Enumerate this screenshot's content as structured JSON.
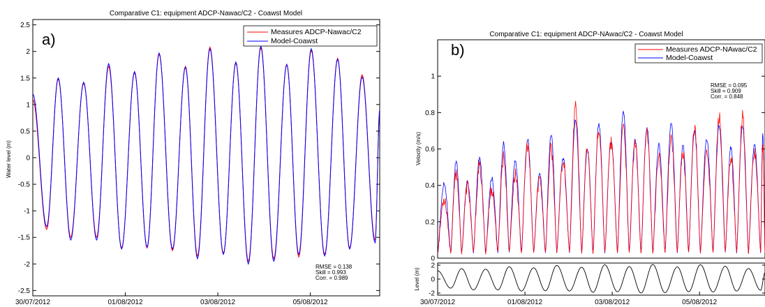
{
  "chart_data": [
    {
      "type": "line",
      "panel_label": "a)",
      "title": "Comparative C1: equipment ADCP-Nawac/C2 - Coawst Model",
      "xlabel": "",
      "ylabel": "Water level (m)",
      "ylim": [
        -2.6,
        2.6
      ],
      "yticks": [
        "2.5",
        "2",
        "1.5",
        "1",
        "0.5",
        "0",
        "-0.5",
        "-1",
        "-1.5",
        "-2",
        "-2.5"
      ],
      "yticks_values": [
        2.5,
        2,
        1.5,
        1,
        0.5,
        0,
        -0.5,
        -1,
        -1.5,
        -2,
        -2.5
      ],
      "xticks": [
        "30/07/2012",
        "01/08/2012",
        "03/08/2012",
        "05/08/2012"
      ],
      "xticks_values": [
        0,
        2,
        4,
        6
      ],
      "xlim": [
        0,
        7.5
      ],
      "grid": false,
      "legend_position": "top-right",
      "series": [
        {
          "name": "Measures ADCP-Nawac/C2",
          "color": "#ff0000"
        },
        {
          "name": "Model-Coawst",
          "color": "#0000ff"
        }
      ],
      "tide_extrema_model": {
        "x": [
          0.0,
          0.3,
          0.55,
          0.82,
          1.1,
          1.38,
          1.64,
          1.92,
          2.2,
          2.47,
          2.73,
          3.02,
          3.3,
          3.56,
          3.83,
          4.12,
          4.39,
          4.66,
          4.93,
          5.21,
          5.49,
          5.75,
          6.02,
          6.31,
          6.59,
          6.85,
          7.12,
          7.4,
          7.5
        ],
        "y": [
          1.2,
          -1.3,
          1.5,
          -1.55,
          1.42,
          -1.55,
          1.77,
          -1.72,
          1.62,
          -1.68,
          1.97,
          -1.72,
          1.7,
          -1.9,
          2.05,
          -1.82,
          1.8,
          -2.0,
          2.1,
          -1.95,
          1.75,
          -1.82,
          2.05,
          -1.85,
          1.85,
          -1.72,
          1.52,
          -1.6,
          0.9
        ]
      },
      "tide_extrema_measured": {
        "x": [
          0.0,
          0.3,
          0.55,
          0.82,
          1.1,
          1.38,
          1.64,
          1.92,
          2.2,
          2.47,
          2.73,
          3.02,
          3.3,
          3.56,
          3.83,
          4.12,
          4.39,
          4.66,
          4.93,
          5.21,
          5.49,
          5.75,
          6.02,
          6.31,
          6.59,
          6.85,
          7.12,
          7.4,
          7.5
        ],
        "y": [
          1.1,
          -1.35,
          1.48,
          -1.5,
          1.4,
          -1.5,
          1.72,
          -1.7,
          1.6,
          -1.7,
          1.95,
          -1.75,
          1.72,
          -1.85,
          2.08,
          -1.8,
          1.78,
          -1.95,
          2.07,
          -1.9,
          1.76,
          -1.87,
          2.02,
          -1.82,
          1.87,
          -1.7,
          1.56,
          -1.55,
          0.85
        ]
      },
      "stats": [
        "RMSE = 0.138",
        "Skill = 0.993",
        "Corr. = 0.989"
      ]
    },
    {
      "type": "line",
      "panel_label": "b)",
      "title": "Comparative C1: equipment ADCP-NAwac/C2 - Coawst Model",
      "xlabel": "",
      "ylabel": "Velocity (m/s)",
      "ylim": [
        0,
        1.2
      ],
      "yticks": [
        "1",
        "0.8",
        "0.6",
        "0.4",
        "0.2",
        "0"
      ],
      "yticks_values": [
        1,
        0.8,
        0.6,
        0.4,
        0.2,
        0
      ],
      "xticks": [
        "30/07/2012",
        "01/08/2012",
        "03/08/2012",
        "05/08/2012"
      ],
      "xticks_values": [
        0,
        2,
        4,
        6
      ],
      "xlim": [
        0,
        7.5
      ],
      "grid": false,
      "legend_position": "top-right",
      "series": [
        {
          "name": "Measures ADCP-NAwac/C2",
          "color": "#ff0000"
        },
        {
          "name": "Model-Coawst",
          "color": "#0000ff"
        }
      ],
      "velocity_peaks_model": [
        0.41,
        0.53,
        0.42,
        0.55,
        0.44,
        0.63,
        0.53,
        0.65,
        0.47,
        0.68,
        0.55,
        0.76,
        0.6,
        0.74,
        0.65,
        0.81,
        0.65,
        0.72,
        0.62,
        0.74,
        0.62,
        0.71,
        0.66,
        0.73,
        0.61,
        0.73,
        0.62,
        0.68,
        0.6
      ],
      "velocity_peaks_measured": [
        0.33,
        0.47,
        0.4,
        0.5,
        0.38,
        0.56,
        0.46,
        0.62,
        0.44,
        0.6,
        0.54,
        0.83,
        0.6,
        0.72,
        0.63,
        0.72,
        0.62,
        0.7,
        0.55,
        0.67,
        0.58,
        0.72,
        0.6,
        0.78,
        0.55,
        0.78,
        0.58,
        0.63,
        0.55
      ],
      "stats": [
        "RMSE = 0.095",
        "Skill = 0.909",
        "Corr. = 0.848"
      ]
    },
    {
      "type": "line",
      "ylabel": "Level (m)",
      "ylim": [
        -2.3,
        2.3
      ],
      "yticks": [
        "2",
        "0",
        "-2"
      ],
      "yticks_values": [
        2,
        0,
        -2
      ],
      "xlim": [
        0,
        7.5
      ],
      "series": [
        {
          "name": "",
          "color": "#000000"
        }
      ]
    }
  ]
}
